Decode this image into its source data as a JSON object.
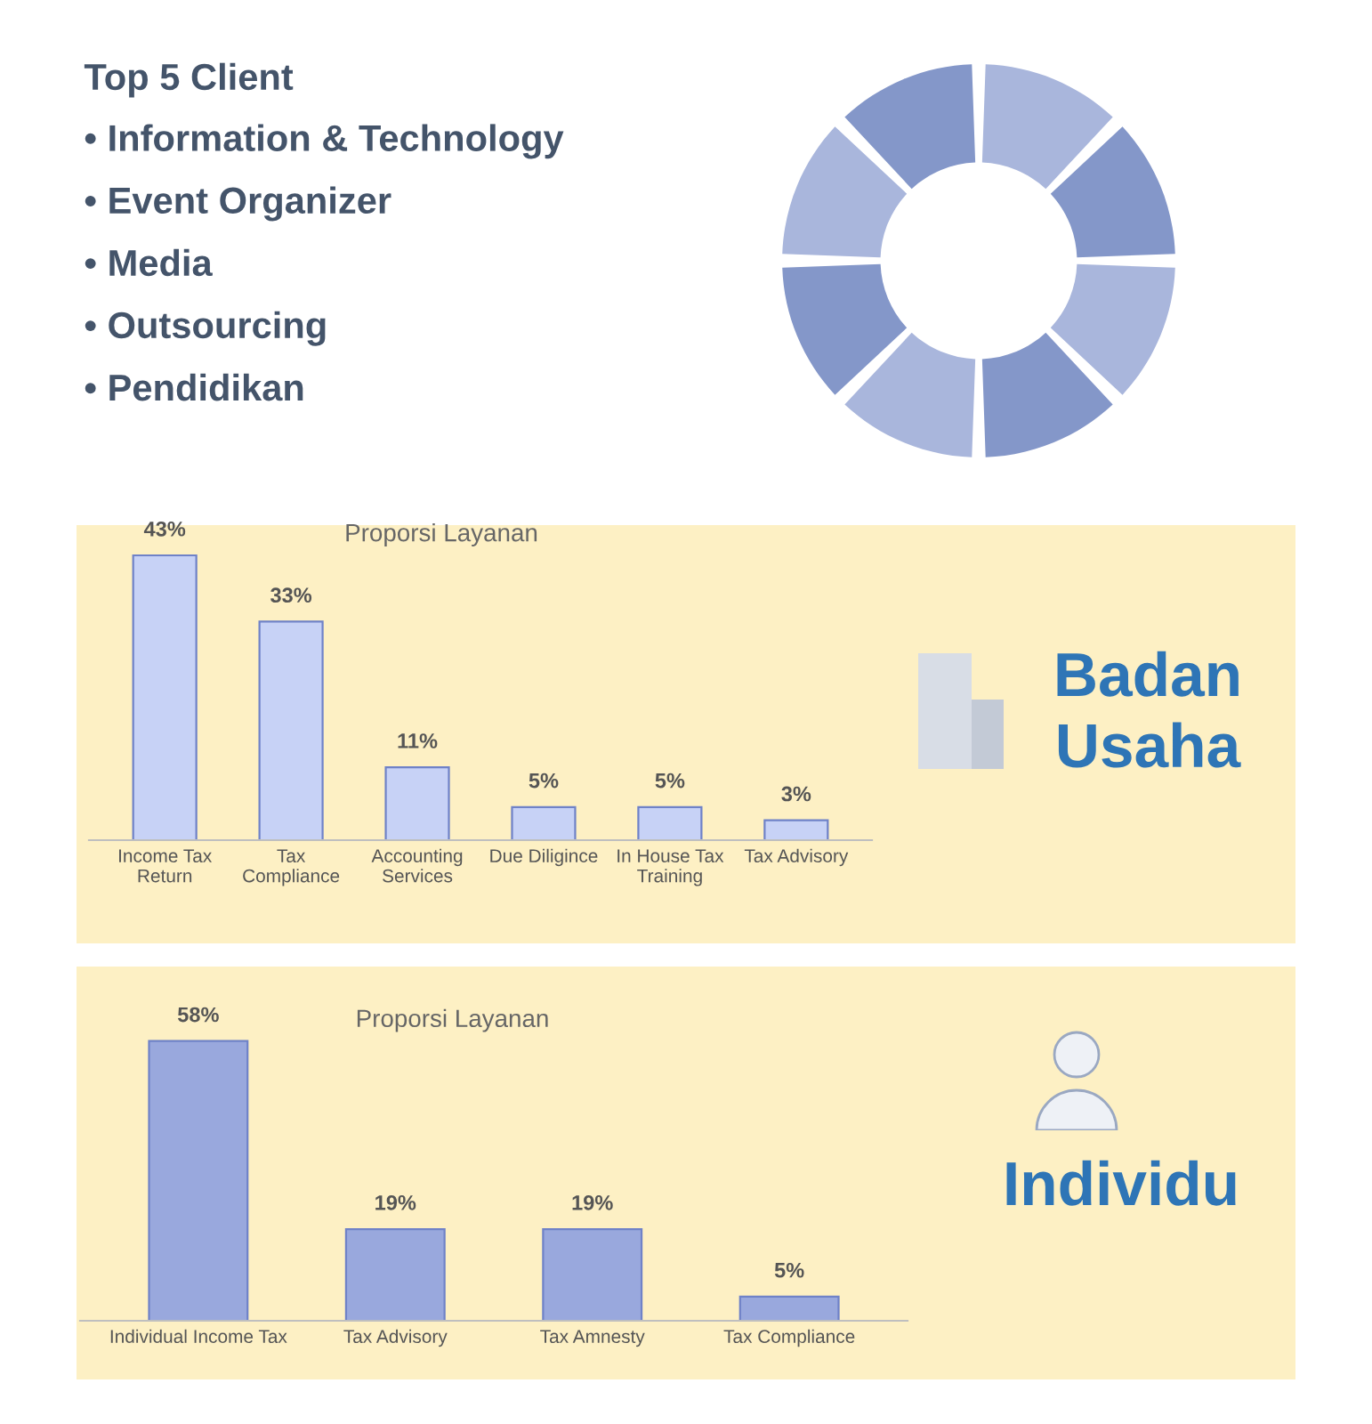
{
  "chart_data": [
    {
      "type": "other",
      "title": "Top 5 Client",
      "annotations": [
        "• Information & Technology",
        "• Event Organizer",
        "• Media",
        "• Outsourcing",
        "• Pendidikan"
      ]
    },
    {
      "type": "bar",
      "title": "Proporsi Layanan",
      "categories": [
        "Income Tax\nReturn",
        "Tax\nCompliance",
        "Accounting\nServices",
        "Due Diligince",
        "In House Tax\nTraining",
        "Tax Advisory"
      ],
      "values": [
        43,
        33,
        11,
        5,
        5,
        3
      ],
      "color": "#c7d2f6",
      "value_labels": [
        "43%",
        "33%",
        "11%",
        "5%",
        "5%",
        "3%"
      ],
      "annotations": [
        "Badan\nUsaha"
      ]
    },
    {
      "type": "bar",
      "title": "Proporsi Layanan",
      "categories": [
        "Individual Income Tax",
        "Tax Advisory",
        "Tax Amnesty",
        "Tax Compliance"
      ],
      "values": [
        58,
        19,
        19,
        5
      ],
      "color": "#99a8dd",
      "value_labels": [
        "58%",
        "19%",
        "19%",
        "5%"
      ],
      "annotations": [
        "Individu"
      ]
    }
  ]
}
